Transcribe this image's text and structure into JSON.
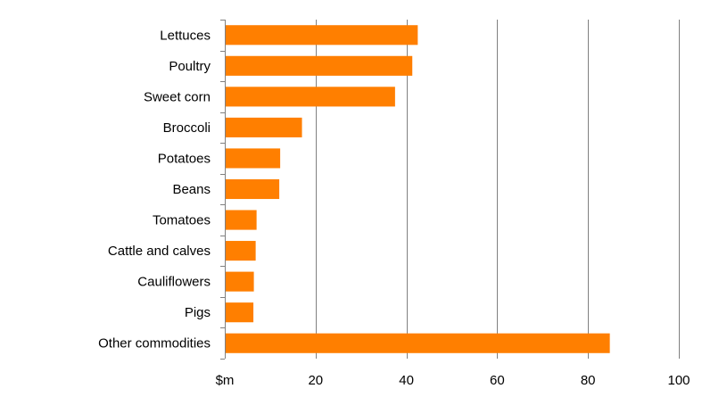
{
  "chart_data": {
    "type": "bar",
    "orientation": "horizontal",
    "categories": [
      "Lettuces",
      "Poultry",
      "Sweet corn",
      "Broccoli",
      "Potatoes",
      "Beans",
      "Tomatoes",
      "Cattle and calves",
      "Cauliflowers",
      "Pigs",
      "Other commodities"
    ],
    "values": [
      42.5,
      41.3,
      37.5,
      17.0,
      12.2,
      12.0,
      7.0,
      6.8,
      6.4,
      6.3,
      84.8
    ],
    "xlim": [
      0,
      100
    ],
    "x_ticks": [
      0,
      20,
      40,
      60,
      80,
      100
    ],
    "x_tick_labels": [
      "$m",
      "20",
      "40",
      "60",
      "80",
      "100"
    ],
    "grid": "vertical",
    "bar_color": "#ff7f00",
    "grid_color": "#808080"
  }
}
